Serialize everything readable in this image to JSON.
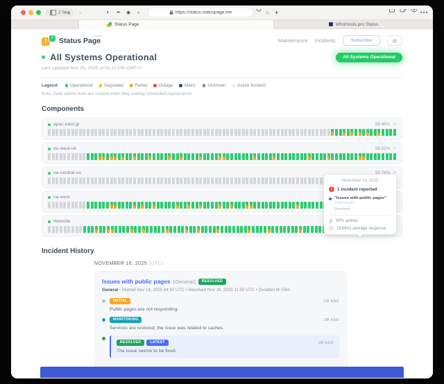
{
  "browser": {
    "window_tabs_label": "2 Tabs",
    "url": "https://status.statuspage.me",
    "tabs": [
      {
        "label": "Status Page"
      },
      {
        "label": "WhoHosts.pro Status"
      }
    ]
  },
  "header": {
    "brand": "Status Page",
    "brand_tag": "hosted",
    "nav": [
      "Maintenance",
      "Incidents"
    ],
    "subscribe": "Subscribe",
    "status_pill": "All Systems Operational"
  },
  "status": {
    "title": "All Systems Operational",
    "last_updated": "Last updated Nov 26, 2025 at 01:23 PM GMT+1"
  },
  "legend": {
    "label": "Legend:",
    "note": "Note: Daily uptime ticks are shaded when they overlap scheduled maintenance.",
    "items": [
      {
        "label": "Operational",
        "color": "#2ecc71"
      },
      {
        "label": "Degraded",
        "color": "#f4c20d"
      },
      {
        "label": "Partial",
        "color": "#f39c12"
      },
      {
        "label": "Outage",
        "color": "#e74c3c"
      },
      {
        "label": "Maint.",
        "color": "#34495e"
      },
      {
        "label": "Unknown",
        "color": "#7f8c8d"
      },
      {
        "label": "Active Incident",
        "color": "#fbeccd"
      }
    ]
  },
  "components": {
    "title": "Components",
    "colors": {
      "unknown": "#d3d7d9",
      "operational": "#2ecc71",
      "maintenance": "#f6a723"
    },
    "rows": [
      {
        "name": "apac-east-jp",
        "uptime": "99.46%",
        "ticks": "UUUUUUUUUUUUUUUUUUUUUUUUUUUUUUUUUUUUUUUUUUUUUUUUUUUUUUUUUUUUUUUUUUUUUUUUUMOOMOMOMOMOOMOOOO"
      },
      {
        "name": "eu-west-uk",
        "uptime": "99.63%",
        "ticks": "UUUUUUUUUUOOOMMOMMOMOOMOOOMOOOOMOOMOOOOMOOOOMMOOOOOOOMOOOOMOOOOOOOOMOOOOMOOOOOOOMMOOOOOOOO"
      },
      {
        "name": "na-central-us",
        "uptime": "99.78%",
        "ticks": "UUUUUUUUUUUUUUUUUUUUUUUUUUUUUUUUUUUUUUUUUUUUUUUUUUUUUUUUUUUUUUUUUUUUUUUUUUUUUUOOOOOOOOOOOO"
      },
      {
        "name": "na-west",
        "uptime": "99.81%",
        "ticks": "UUUUUUUUUUOOOOOOMMOOOOMOMOOMOOOOOMOOMOOMOOOOMOOMOOOMMOOOOOOOOOOOMOOOOOOOOMOOOOMOOOOOOOOMOO"
      },
      {
        "name": "Website",
        "uptime": "99.74%",
        "ticks": "UUUUUUUUUOOOMOOMMOOOOMOOMOOOOOMOOOOMOOMOOOOMOOOOOOOMOOOOMOOOOOOOMOOOOOOOOOOOMMMHOOMOOMOOO"
      }
    ]
  },
  "tooltip": {
    "date": "November 16, 2025",
    "incidents": "1 incident reported",
    "title": "\"Issues with public pages\"",
    "scope": "(\"General\")",
    "state": "Resolved",
    "uptime": "99% uptime",
    "response": "1534ms average response"
  },
  "history": {
    "title": "Incident History",
    "date": "NOVEMBER 16, 2025",
    "date_suffix": "(UTC)",
    "incident": {
      "title": "Issues with public pages",
      "scope": "(General)",
      "badge": "RESOLVED",
      "meta_bold": "General",
      "meta": " • Started Nov 16, 2025 04:50 UTC • Resolved Nov 16, 2025 11:50 UTC • Duration 6h 59m",
      "updates": [
        {
          "dot": "#bcc4ca",
          "badges": [
            {
              "label": "INITIAL",
              "color": "#f6a723"
            }
          ],
          "time": "1W AGO",
          "text": "Public pages are not responding.",
          "highlight": false
        },
        {
          "dot": "#17a2b8",
          "badges": [
            {
              "label": "MONITORING",
              "color": "#17a2b8"
            }
          ],
          "time": "1W AGO",
          "text": "Services are restored; the issue was related to caches.",
          "highlight": false
        },
        {
          "dot": "#1fa45b",
          "badges": [
            {
              "label": "RESOLVED",
              "color": "#1fa45b"
            },
            {
              "label": "LATEST",
              "color": "#4a6df5"
            }
          ],
          "time": "1W AGO",
          "text": "The issue seems to be fixed.",
          "highlight": true
        }
      ]
    }
  },
  "theme": {
    "accent_green": "#2ecc71",
    "maintenance_orange": "#f6a723",
    "link_blue": "#4a6df5",
    "footer_blue": "#3d5ad7",
    "status_pill_green": "#1fcd62"
  }
}
